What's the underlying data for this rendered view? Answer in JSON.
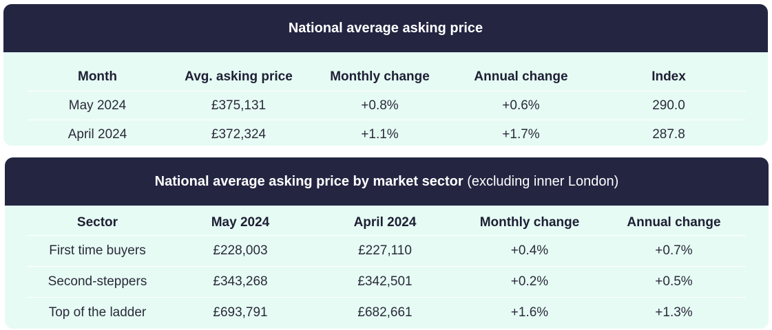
{
  "table1": {
    "title": "National average asking price",
    "columns": [
      "Month",
      "Avg. asking price",
      "Monthly change",
      "Annual change",
      "Index"
    ],
    "rows": [
      [
        "May 2024",
        "£375,131",
        "+0.8%",
        "+0.6%",
        "290.0"
      ],
      [
        "April 2024",
        "£372,324",
        "+1.1%",
        "+1.7%",
        "287.8"
      ]
    ]
  },
  "table2": {
    "title": "National average asking price by market sector",
    "subtitle": "(excluding inner London)",
    "columns": [
      "Sector",
      "May 2024",
      "April 2024",
      "Monthly change",
      "Annual change"
    ],
    "rows": [
      [
        "First time buyers",
        "£228,003",
        "£227,110",
        "+0.4%",
        "+0.7%"
      ],
      [
        "Second-steppers",
        "£343,268",
        "£342,501",
        "+0.2%",
        "+0.5%"
      ],
      [
        "Top of the ladder",
        "£693,791",
        "£682,661",
        "+1.6%",
        "+1.3%"
      ]
    ]
  },
  "colors": {
    "header_bg": "#232541",
    "card_bg": "#e6fbf4"
  }
}
